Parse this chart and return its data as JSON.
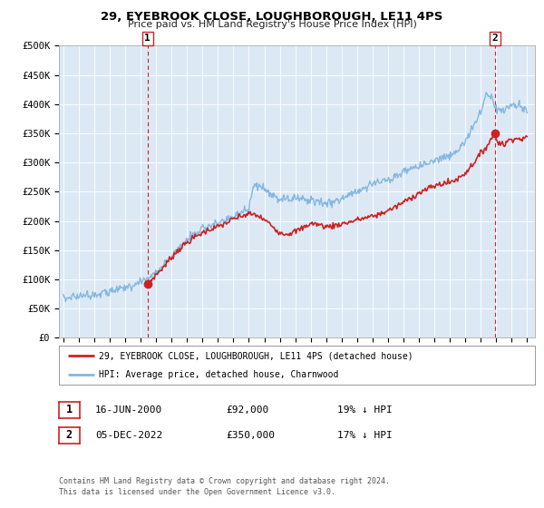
{
  "title": "29, EYEBROOK CLOSE, LOUGHBOROUGH, LE11 4PS",
  "subtitle": "Price paid vs. HM Land Registry's House Price Index (HPI)",
  "bg_color": "#dce9f5",
  "hpi_color": "#85b8e0",
  "sale_color": "#cc2222",
  "ylim": [
    0,
    500000
  ],
  "yticks": [
    0,
    50000,
    100000,
    150000,
    200000,
    250000,
    300000,
    350000,
    400000,
    450000,
    500000
  ],
  "ytick_labels": [
    "£0",
    "£50K",
    "£100K",
    "£150K",
    "£200K",
    "£250K",
    "£300K",
    "£350K",
    "£400K",
    "£450K",
    "£500K"
  ],
  "xlim_start": 1994.7,
  "xlim_end": 2025.5,
  "xtick_years": [
    1995,
    1996,
    1997,
    1998,
    1999,
    2000,
    2001,
    2002,
    2003,
    2004,
    2005,
    2006,
    2007,
    2008,
    2009,
    2010,
    2011,
    2012,
    2013,
    2014,
    2015,
    2016,
    2017,
    2018,
    2019,
    2020,
    2021,
    2022,
    2023,
    2024,
    2025
  ],
  "sale1_x": 2000.45,
  "sale1_y": 92000,
  "sale2_x": 2022.92,
  "sale2_y": 350000,
  "legend_line1": "29, EYEBROOK CLOSE, LOUGHBOROUGH, LE11 4PS (detached house)",
  "legend_line2": "HPI: Average price, detached house, Charnwood",
  "sale1_date": "16-JUN-2000",
  "sale1_price": "£92,000",
  "sale1_hpi": "19% ↓ HPI",
  "sale2_date": "05-DEC-2022",
  "sale2_price": "£350,000",
  "sale2_hpi": "17% ↓ HPI",
  "footer1": "Contains HM Land Registry data © Crown copyright and database right 2024.",
  "footer2": "This data is licensed under the Open Government Licence v3.0.",
  "hpi_anchors": [
    [
      1995.0,
      68000
    ],
    [
      1995.5,
      70000
    ],
    [
      1996.0,
      72000
    ],
    [
      1996.5,
      73500
    ],
    [
      1997.0,
      75000
    ],
    [
      1997.5,
      76500
    ],
    [
      1998.0,
      79000
    ],
    [
      1998.5,
      82000
    ],
    [
      1999.0,
      86000
    ],
    [
      1999.5,
      91000
    ],
    [
      2000.0,
      96000
    ],
    [
      2000.5,
      102000
    ],
    [
      2001.0,
      112000
    ],
    [
      2001.5,
      125000
    ],
    [
      2002.0,
      140000
    ],
    [
      2002.5,
      155000
    ],
    [
      2003.0,
      168000
    ],
    [
      2003.5,
      178000
    ],
    [
      2004.0,
      188000
    ],
    [
      2004.5,
      193000
    ],
    [
      2005.0,
      196000
    ],
    [
      2005.5,
      200000
    ],
    [
      2006.0,
      207000
    ],
    [
      2006.5,
      213000
    ],
    [
      2007.0,
      220000
    ],
    [
      2007.3,
      255000
    ],
    [
      2007.7,
      263000
    ],
    [
      2008.0,
      252000
    ],
    [
      2008.5,
      244000
    ],
    [
      2009.0,
      236000
    ],
    [
      2009.5,
      237000
    ],
    [
      2010.0,
      241000
    ],
    [
      2010.5,
      238000
    ],
    [
      2011.0,
      236000
    ],
    [
      2011.5,
      233000
    ],
    [
      2012.0,
      231000
    ],
    [
      2012.5,
      234000
    ],
    [
      2013.0,
      238000
    ],
    [
      2013.5,
      244000
    ],
    [
      2014.0,
      252000
    ],
    [
      2014.5,
      258000
    ],
    [
      2015.0,
      263000
    ],
    [
      2015.5,
      267000
    ],
    [
      2016.0,
      270000
    ],
    [
      2016.5,
      276000
    ],
    [
      2017.0,
      283000
    ],
    [
      2017.5,
      289000
    ],
    [
      2018.0,
      294000
    ],
    [
      2018.5,
      299000
    ],
    [
      2019.0,
      304000
    ],
    [
      2019.5,
      308000
    ],
    [
      2020.0,
      311000
    ],
    [
      2020.5,
      320000
    ],
    [
      2021.0,
      338000
    ],
    [
      2021.5,
      360000
    ],
    [
      2022.0,
      385000
    ],
    [
      2022.4,
      420000
    ],
    [
      2022.7,
      415000
    ],
    [
      2023.0,
      392000
    ],
    [
      2023.5,
      388000
    ],
    [
      2024.0,
      400000
    ],
    [
      2024.5,
      395000
    ],
    [
      2025.0,
      388000
    ]
  ],
  "sale_anchors": [
    [
      2000.45,
      92000
    ],
    [
      2001.0,
      108000
    ],
    [
      2001.5,
      122000
    ],
    [
      2002.0,
      138000
    ],
    [
      2002.5,
      152000
    ],
    [
      2003.0,
      163000
    ],
    [
      2003.5,
      172000
    ],
    [
      2004.0,
      180000
    ],
    [
      2004.5,
      186000
    ],
    [
      2005.0,
      190000
    ],
    [
      2005.5,
      196000
    ],
    [
      2006.0,
      203000
    ],
    [
      2006.5,
      208000
    ],
    [
      2007.0,
      212000
    ],
    [
      2007.5,
      210000
    ],
    [
      2008.0,
      202000
    ],
    [
      2008.5,
      192000
    ],
    [
      2009.0,
      180000
    ],
    [
      2009.5,
      178000
    ],
    [
      2010.0,
      182000
    ],
    [
      2010.5,
      188000
    ],
    [
      2011.0,
      196000
    ],
    [
      2011.5,
      194000
    ],
    [
      2012.0,
      190000
    ],
    [
      2012.5,
      192000
    ],
    [
      2013.0,
      195000
    ],
    [
      2013.5,
      198000
    ],
    [
      2014.0,
      202000
    ],
    [
      2014.5,
      205000
    ],
    [
      2015.0,
      208000
    ],
    [
      2015.5,
      212000
    ],
    [
      2016.0,
      218000
    ],
    [
      2016.5,
      224000
    ],
    [
      2017.0,
      232000
    ],
    [
      2017.5,
      240000
    ],
    [
      2018.0,
      248000
    ],
    [
      2018.5,
      254000
    ],
    [
      2019.0,
      260000
    ],
    [
      2019.5,
      264000
    ],
    [
      2020.0,
      266000
    ],
    [
      2020.5,
      272000
    ],
    [
      2021.0,
      282000
    ],
    [
      2021.5,
      298000
    ],
    [
      2022.0,
      315000
    ],
    [
      2022.5,
      332000
    ],
    [
      2022.92,
      350000
    ],
    [
      2023.0,
      338000
    ],
    [
      2023.5,
      330000
    ],
    [
      2024.0,
      342000
    ],
    [
      2024.5,
      340000
    ],
    [
      2025.0,
      342000
    ]
  ]
}
